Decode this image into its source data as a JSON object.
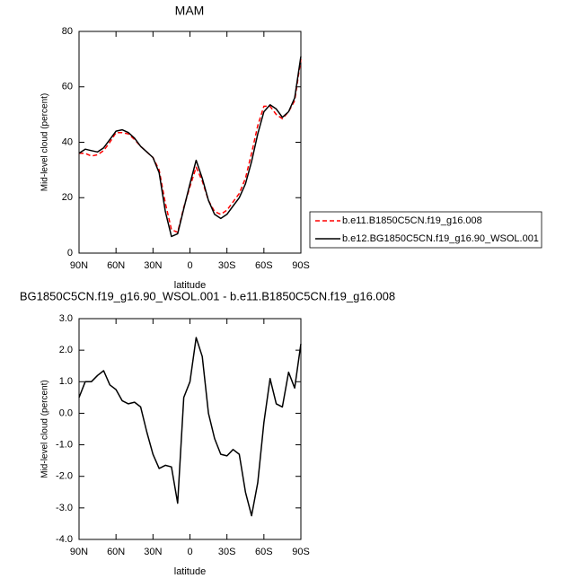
{
  "chart_data": [
    {
      "type": "line",
      "title": "MAM",
      "ylabel": "Mid-level cloud (percent)",
      "xlabel": "latitude",
      "x": [
        90,
        85,
        80,
        75,
        70,
        65,
        60,
        55,
        50,
        45,
        40,
        35,
        30,
        25,
        20,
        15,
        10,
        5,
        0,
        -5,
        -10,
        -15,
        -20,
        -25,
        -30,
        -35,
        -40,
        -45,
        -50,
        -55,
        -60,
        -65,
        -70,
        -75,
        -80,
        -85,
        -90
      ],
      "series": [
        {
          "name": "b.e11.B1850C5CN.f19_g16.008",
          "color": "#ff0000",
          "dash": true,
          "values": [
            36,
            36,
            35,
            35.5,
            37,
            40,
            43.5,
            43.5,
            43,
            41,
            38.5,
            36.5,
            34.5,
            30,
            18,
            8.5,
            7.5,
            16.5,
            24,
            31,
            26,
            19,
            15,
            14,
            15.5,
            18.5,
            21.5,
            27,
            36,
            46,
            53,
            53,
            50,
            48.5,
            51,
            55,
            70
          ]
        },
        {
          "name": "b.e12.BG1850C5CN.f19_g16.90_WSOL.001",
          "color": "#000000",
          "dash": false,
          "values": [
            36,
            37.5,
            37,
            36.5,
            38,
            41,
            44,
            44.5,
            43.5,
            41.5,
            38.5,
            36.5,
            34.5,
            29,
            15,
            6,
            7,
            16,
            25,
            33.5,
            27,
            19,
            14,
            12.5,
            14,
            17,
            20,
            25,
            33,
            43,
            51,
            53.5,
            52,
            49,
            51,
            56,
            71
          ]
        }
      ],
      "xlim": [
        90,
        -90
      ],
      "xticks": [
        {
          "value": 90,
          "label": "90N"
        },
        {
          "value": 60,
          "label": "60N"
        },
        {
          "value": 30,
          "label": "30N"
        },
        0,
        {
          "value": -30,
          "label": "30S"
        },
        {
          "value": -60,
          "label": "60S"
        },
        {
          "value": -90,
          "label": "90S"
        }
      ],
      "ylim": [
        0,
        80
      ],
      "yticks": [
        0,
        20,
        40,
        60,
        80
      ],
      "legend": "right"
    },
    {
      "type": "line",
      "title": "BG1850C5CN.f19_g16.90_WSOL.001 - b.e11.B1850C5CN.f19_g16.008",
      "ylabel": "Mid-level cloud (percent)",
      "xlabel": "latitude",
      "x": [
        90,
        85,
        80,
        75,
        70,
        65,
        60,
        55,
        50,
        45,
        40,
        35,
        30,
        25,
        20,
        15,
        10,
        5,
        0,
        -5,
        -10,
        -15,
        -20,
        -25,
        -30,
        -35,
        -40,
        -45,
        -50,
        -55,
        -60,
        -65,
        -70,
        -75,
        -80,
        -85,
        -90
      ],
      "series": [
        {
          "color": "#000000",
          "values": [
            0.5,
            1.0,
            1.0,
            1.2,
            1.35,
            0.9,
            0.75,
            0.4,
            0.3,
            0.35,
            0.2,
            -0.6,
            -1.3,
            -1.75,
            -1.65,
            -1.7,
            -2.85,
            0.5,
            1.0,
            2.4,
            1.8,
            0,
            -0.8,
            -1.3,
            -1.35,
            -1.15,
            -1.3,
            -2.5,
            -3.25,
            -2.2,
            -0.3,
            1.1,
            0.3,
            0.2,
            1.3,
            0.8,
            2.2
          ]
        }
      ],
      "xlim": [
        90,
        -90
      ],
      "xticks": [
        {
          "value": 90,
          "label": "90N"
        },
        {
          "value": 60,
          "label": "60N"
        },
        {
          "value": 30,
          "label": "30N"
        },
        0,
        {
          "value": -30,
          "label": "30S"
        },
        {
          "value": -60,
          "label": "60S"
        },
        {
          "value": -90,
          "label": "90S"
        }
      ],
      "ylim": [
        -4,
        3
      ],
      "yticks": [
        {
          "value": -4,
          "label": "-4.0"
        },
        {
          "value": -3,
          "label": "-3.0"
        },
        {
          "value": -2,
          "label": "-2.0"
        },
        {
          "value": -1,
          "label": "-1.0"
        },
        {
          "value": 0,
          "label": "0.0"
        },
        {
          "value": 1,
          "label": "1.0"
        },
        {
          "value": 2,
          "label": "2.0"
        },
        {
          "value": 3,
          "label": "3.0"
        }
      ]
    }
  ]
}
